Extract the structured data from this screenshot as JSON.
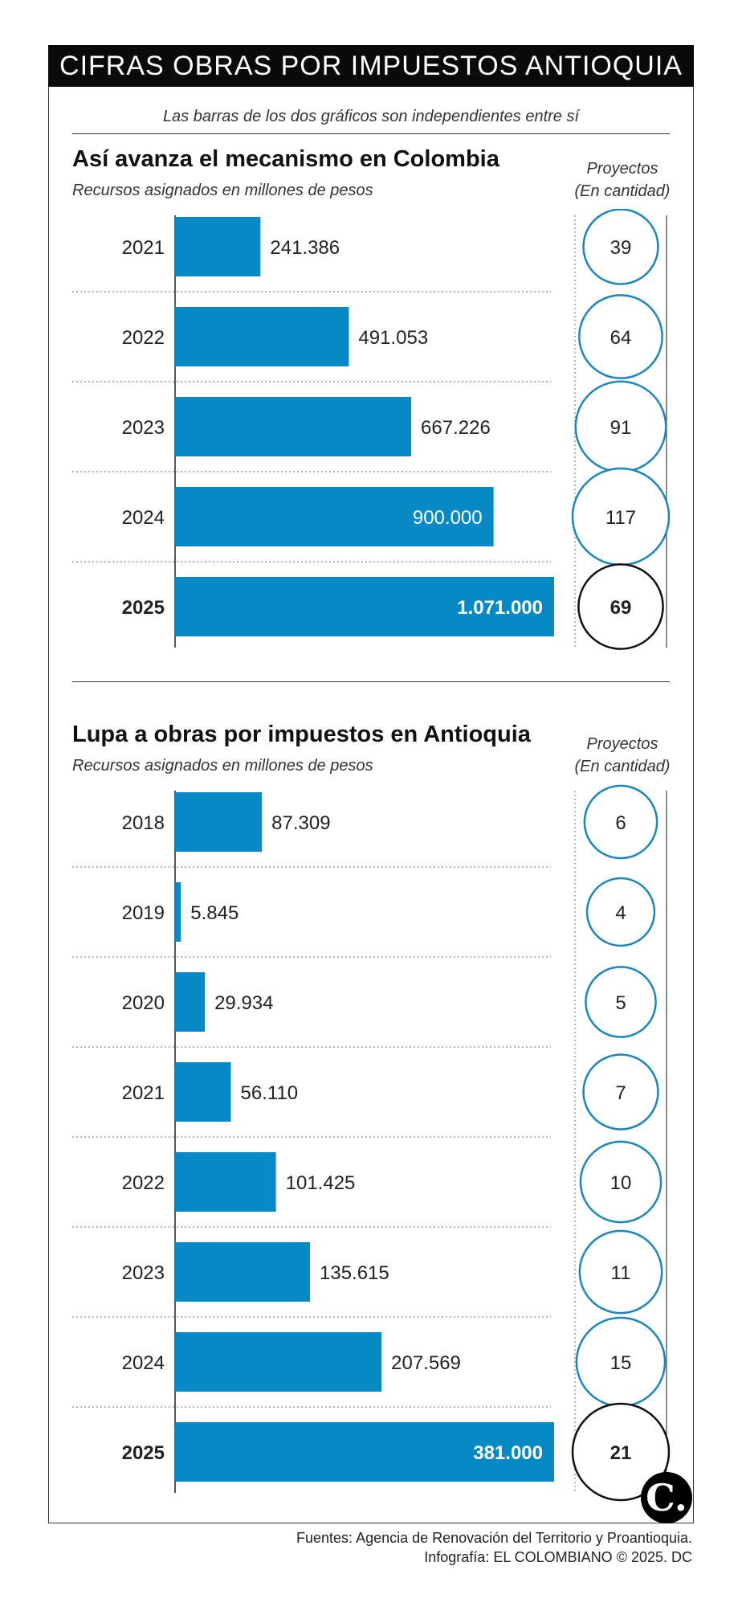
{
  "header": {
    "title": "CIFRAS OBRAS POR IMPUESTOS ANTIOQUIA"
  },
  "note": "Las barras de los dos gráficos son independientes entre sí",
  "colors": {
    "bar": "#0789c6",
    "circle": "#1a86bf",
    "header_bg": "#0a0a0a"
  },
  "chart_data": [
    {
      "type": "bar",
      "title": "Así avanza el mecanismo en Colombia",
      "subtitle": "Recursos asignados en millones de pesos",
      "projects_label_1": "Proyectos",
      "projects_label_2": "(En cantidad)",
      "categories": [
        "2021",
        "2022",
        "2023",
        "2024",
        "2025"
      ],
      "value_labels": [
        "241.386",
        "491.053",
        "667.226",
        "900.000",
        "1.071.000"
      ],
      "values": [
        241386,
        491053,
        667226,
        900000,
        1071000
      ],
      "projects": [
        39,
        64,
        91,
        117,
        69
      ],
      "highlight": "2025",
      "xlim": [
        0,
        1071000
      ]
    },
    {
      "type": "bar",
      "title": "Lupa a obras por impuestos en Antioquia",
      "subtitle": "Recursos asignados en millones de pesos",
      "projects_label_1": "Proyectos",
      "projects_label_2": "(En cantidad)",
      "categories": [
        "2018",
        "2019",
        "2020",
        "2021",
        "2022",
        "2023",
        "2024",
        "2025"
      ],
      "value_labels": [
        "87.309",
        "5.845",
        "29.934",
        "56.110",
        "101.425",
        "135.615",
        "207.569",
        "381.000"
      ],
      "values": [
        87309,
        5845,
        29934,
        56110,
        101425,
        135615,
        207569,
        381000
      ],
      "projects": [
        6,
        4,
        5,
        7,
        10,
        11,
        15,
        21
      ],
      "highlight": "2025",
      "xlim": [
        0,
        381000
      ]
    }
  ],
  "footer": {
    "line1": "Fuentes: Agencia de Renovación del Territorio y Proantioquia.",
    "line2": "Infografía: EL COLOMBIANO © 2025. DC"
  },
  "logo_text": "C."
}
